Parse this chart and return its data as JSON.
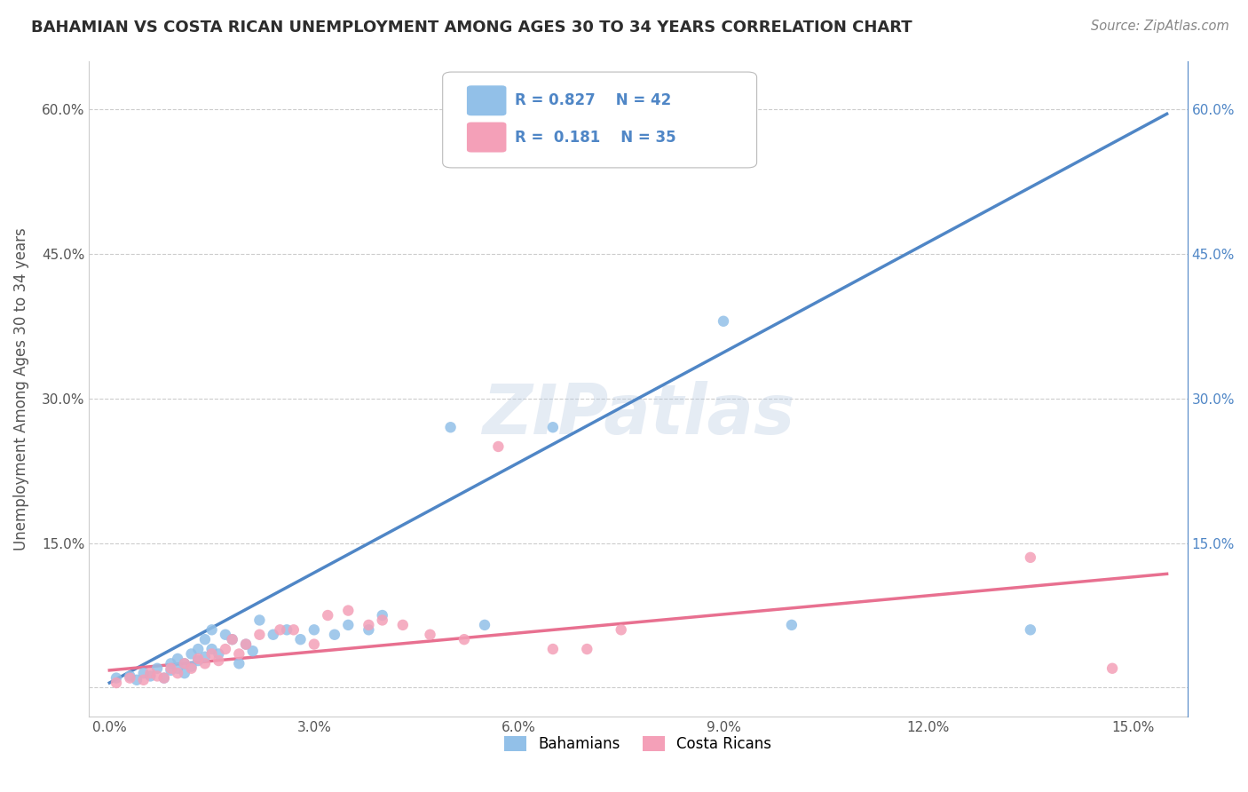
{
  "title": "BAHAMIAN VS COSTA RICAN UNEMPLOYMENT AMONG AGES 30 TO 34 YEARS CORRELATION CHART",
  "source": "Source: ZipAtlas.com",
  "ylabel": "Unemployment Among Ages 30 to 34 years",
  "x_ticks": [
    0.0,
    0.03,
    0.06,
    0.09,
    0.12,
    0.15
  ],
  "x_tick_labels": [
    "0.0%",
    "3.0%",
    "6.0%",
    "9.0%",
    "12.0%",
    "15.0%"
  ],
  "y_ticks": [
    0.0,
    0.15,
    0.3,
    0.45,
    0.6
  ],
  "y_tick_labels_left": [
    "",
    "15.0%",
    "30.0%",
    "45.0%",
    "60.0%"
  ],
  "y_tick_labels_right": [
    "",
    "15.0%",
    "30.0%",
    "45.0%",
    "60.0%"
  ],
  "xlim": [
    -0.003,
    0.158
  ],
  "ylim": [
    -0.03,
    0.65
  ],
  "bahamian_color": "#92c0e8",
  "costa_rican_color": "#f4a0b8",
  "bahamian_line_color": "#4f86c6",
  "costa_rican_line_color": "#e87090",
  "watermark_text": "ZIPatlas",
  "legend_label_bahamians": "Bahamians",
  "legend_label_costaricans": "Costa Ricans",
  "bah_scatter_x": [
    0.001,
    0.003,
    0.004,
    0.005,
    0.006,
    0.007,
    0.008,
    0.009,
    0.009,
    0.01,
    0.01,
    0.011,
    0.011,
    0.012,
    0.012,
    0.013,
    0.013,
    0.014,
    0.014,
    0.015,
    0.015,
    0.016,
    0.017,
    0.018,
    0.019,
    0.02,
    0.021,
    0.022,
    0.024,
    0.026,
    0.028,
    0.03,
    0.033,
    0.035,
    0.038,
    0.04,
    0.05,
    0.055,
    0.065,
    0.09,
    0.1,
    0.135
  ],
  "bah_scatter_y": [
    0.01,
    0.012,
    0.008,
    0.015,
    0.012,
    0.02,
    0.01,
    0.018,
    0.025,
    0.02,
    0.03,
    0.015,
    0.025,
    0.022,
    0.035,
    0.028,
    0.04,
    0.032,
    0.05,
    0.04,
    0.06,
    0.035,
    0.055,
    0.05,
    0.025,
    0.045,
    0.038,
    0.07,
    0.055,
    0.06,
    0.05,
    0.06,
    0.055,
    0.065,
    0.06,
    0.075,
    0.27,
    0.065,
    0.27,
    0.38,
    0.065,
    0.06
  ],
  "cr_scatter_x": [
    0.001,
    0.003,
    0.005,
    0.006,
    0.007,
    0.008,
    0.009,
    0.01,
    0.011,
    0.012,
    0.013,
    0.014,
    0.015,
    0.016,
    0.017,
    0.018,
    0.019,
    0.02,
    0.022,
    0.025,
    0.027,
    0.03,
    0.032,
    0.035,
    0.038,
    0.04,
    0.043,
    0.047,
    0.052,
    0.057,
    0.065,
    0.07,
    0.075,
    0.135,
    0.147
  ],
  "cr_scatter_y": [
    0.005,
    0.01,
    0.008,
    0.015,
    0.012,
    0.01,
    0.02,
    0.015,
    0.025,
    0.02,
    0.03,
    0.025,
    0.035,
    0.028,
    0.04,
    0.05,
    0.035,
    0.045,
    0.055,
    0.06,
    0.06,
    0.045,
    0.075,
    0.08,
    0.065,
    0.07,
    0.065,
    0.055,
    0.05,
    0.25,
    0.04,
    0.04,
    0.06,
    0.135,
    0.02
  ],
  "bah_line_x": [
    0.0,
    0.155
  ],
  "bah_line_y": [
    0.005,
    0.595
  ],
  "cr_line_x": [
    0.0,
    0.155
  ],
  "cr_line_y": [
    0.018,
    0.118
  ]
}
